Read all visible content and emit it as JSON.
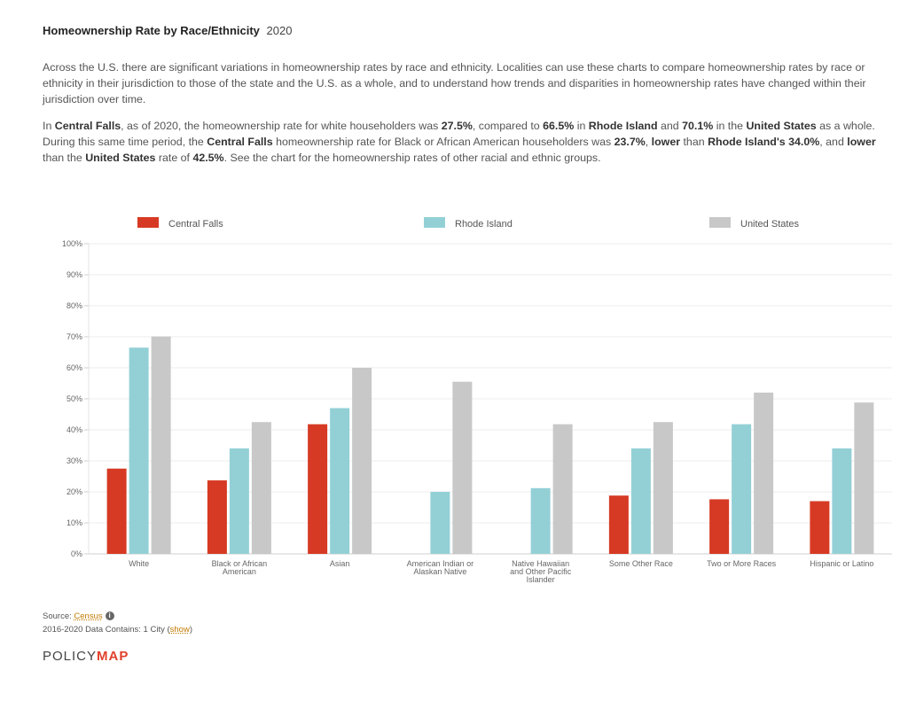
{
  "header": {
    "title": "Homeownership Rate by Race/Ethnicity",
    "year": "2020"
  },
  "intro": "Across the U.S. there are significant variations in homeownership rates by race and ethnicity. Localities can use these charts to compare homeownership rates by race or ethnicity in their jurisdiction to those of the state and the U.S. as a whole, and to understand how trends and disparities in homeownership rates have changed within their jurisdiction over time.",
  "summary": {
    "s1": "In ",
    "loc1": "Central Falls",
    "s2": ", as of 2020, the homeownership rate for white householders was ",
    "v1": "27.5%",
    "s3": ", compared to ",
    "v2": "66.5%",
    "s4": " in ",
    "state1": "Rhode Island",
    "s5": " and ",
    "v3": "70.1%",
    "s6": " in the ",
    "us1": "United States",
    "s7": " as a whole. During this same time period, the ",
    "loc2": "Central Falls",
    "s8": " homeownership rate for Black or African American householders was ",
    "v4": "23.7%",
    "s9": ", ",
    "cmp1": "lower",
    "s10": " than ",
    "state2": "Rhode Island's 34.0%",
    "s11": ", and ",
    "cmp2": "lower",
    "s12": " than the ",
    "us2": "United States",
    "s13": " rate of ",
    "v5": "42.5%",
    "s14": ". See the chart for the homeownership rates of other racial and ethnic groups."
  },
  "chart_data": {
    "type": "bar",
    "categories": [
      [
        "White"
      ],
      [
        "Black or African",
        "American"
      ],
      [
        "Asian"
      ],
      [
        "American Indian or",
        "Alaskan Native"
      ],
      [
        "Native Hawaiian",
        "and Other Pacific",
        "Islander"
      ],
      [
        "Some Other Race"
      ],
      [
        "Two or More Races"
      ],
      [
        "Hispanic or Latino"
      ]
    ],
    "series": [
      {
        "name": "Central Falls",
        "color": "#d63a24",
        "values": [
          27.5,
          23.7,
          41.8,
          null,
          null,
          18.8,
          17.6,
          17.0
        ]
      },
      {
        "name": "Rhode Island",
        "color": "#93d0d6",
        "values": [
          66.5,
          34.0,
          47.0,
          20.0,
          21.2,
          34.0,
          41.8,
          34.0
        ]
      },
      {
        "name": "United States",
        "color": "#c8c8c8",
        "values": [
          70.1,
          42.5,
          60.0,
          55.5,
          41.8,
          42.5,
          52.0,
          48.8
        ]
      }
    ],
    "yticks": [
      "0%",
      "10%",
      "20%",
      "30%",
      "40%",
      "50%",
      "60%",
      "70%",
      "80%",
      "90%",
      "100%"
    ],
    "ylim": [
      0,
      100
    ],
    "legend_position": "top"
  },
  "footer": {
    "source_label": "Source: ",
    "source_link": "Census",
    "info_icon": "i",
    "contains_prefix": "2016-2020 Data Contains: 1 City (",
    "show_link": "show",
    "contains_suffix": ")"
  },
  "logo": {
    "part1": "POLICY",
    "part2": "MAP"
  }
}
